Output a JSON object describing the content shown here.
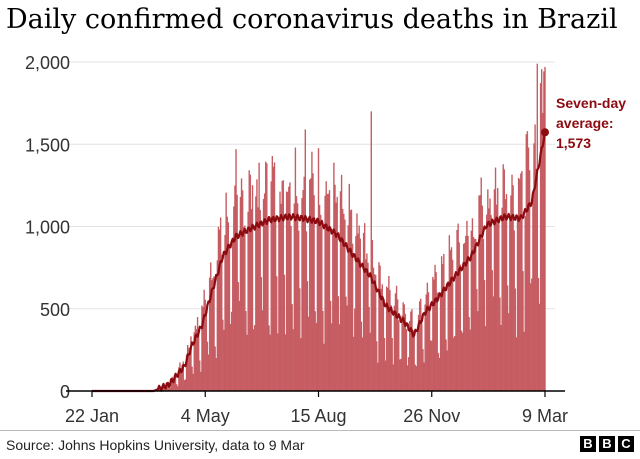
{
  "title": "Daily confirmed coronavirus deaths in Brazil",
  "source": "Source: Johns Hopkins University, data to 9 Mar",
  "brand": [
    "B",
    "B",
    "C"
  ],
  "colors": {
    "bars": "#c65d63",
    "line": "#8b0b10",
    "axis": "#000000",
    "grid": "#e3e3e3"
  },
  "chart_data": {
    "type": "bar",
    "overlay": "line",
    "x_start": "22 Jan",
    "x_end": "9 Mar",
    "x_tick_labels": [
      "22 Jan",
      "4 May",
      "15 Aug",
      "26 Nov",
      "9 Mar"
    ],
    "y_tick_labels": [
      "0",
      "500",
      "1,000",
      "1,500",
      "2,000"
    ],
    "ylim": [
      0,
      2000
    ],
    "grid": true,
    "seven_day_average": [
      {
        "date": "22 Jan",
        "value": 0
      },
      {
        "date": "18 Mar",
        "value": 0
      },
      {
        "date": "1 Apr",
        "value": 40
      },
      {
        "date": "15 Apr",
        "value": 150
      },
      {
        "date": "22 Apr",
        "value": 280
      },
      {
        "date": "1 May",
        "value": 400
      },
      {
        "date": "10 May",
        "value": 600
      },
      {
        "date": "20 May",
        "value": 820
      },
      {
        "date": "1 Jun",
        "value": 940
      },
      {
        "date": "15 Jun",
        "value": 990
      },
      {
        "date": "1 Jul",
        "value": 1040
      },
      {
        "date": "20 Jul",
        "value": 1060
      },
      {
        "date": "1 Aug",
        "value": 1050
      },
      {
        "date": "15 Aug",
        "value": 1030
      },
      {
        "date": "1 Sep",
        "value": 950
      },
      {
        "date": "15 Sep",
        "value": 830
      },
      {
        "date": "1 Oct",
        "value": 700
      },
      {
        "date": "15 Oct",
        "value": 520
      },
      {
        "date": "1 Nov",
        "value": 420
      },
      {
        "date": "10 Nov",
        "value": 340
      },
      {
        "date": "20 Nov",
        "value": 480
      },
      {
        "date": "1 Dec",
        "value": 560
      },
      {
        "date": "15 Dec",
        "value": 680
      },
      {
        "date": "1 Jan",
        "value": 820
      },
      {
        "date": "15 Jan",
        "value": 1010
      },
      {
        "date": "1 Feb",
        "value": 1060
      },
      {
        "date": "15 Feb",
        "value": 1050
      },
      {
        "date": "25 Feb",
        "value": 1150
      },
      {
        "date": "9 Mar",
        "value": 1573
      }
    ],
    "daily_deaths_approx": {
      "note": "Seven-day average: 1,573",
      "peaks": [
        {
          "date": "1 Jun",
          "value": 1470
        },
        {
          "date": "3 Aug",
          "value": 1590
        },
        {
          "date": "2 Oct",
          "value": 1700
        },
        {
          "date": "2 Mar",
          "value": 1990
        },
        {
          "date": "9 Mar",
          "value": 1970
        }
      ]
    },
    "annotation": {
      "label": "Seven-day average:",
      "value": "1,573"
    }
  }
}
